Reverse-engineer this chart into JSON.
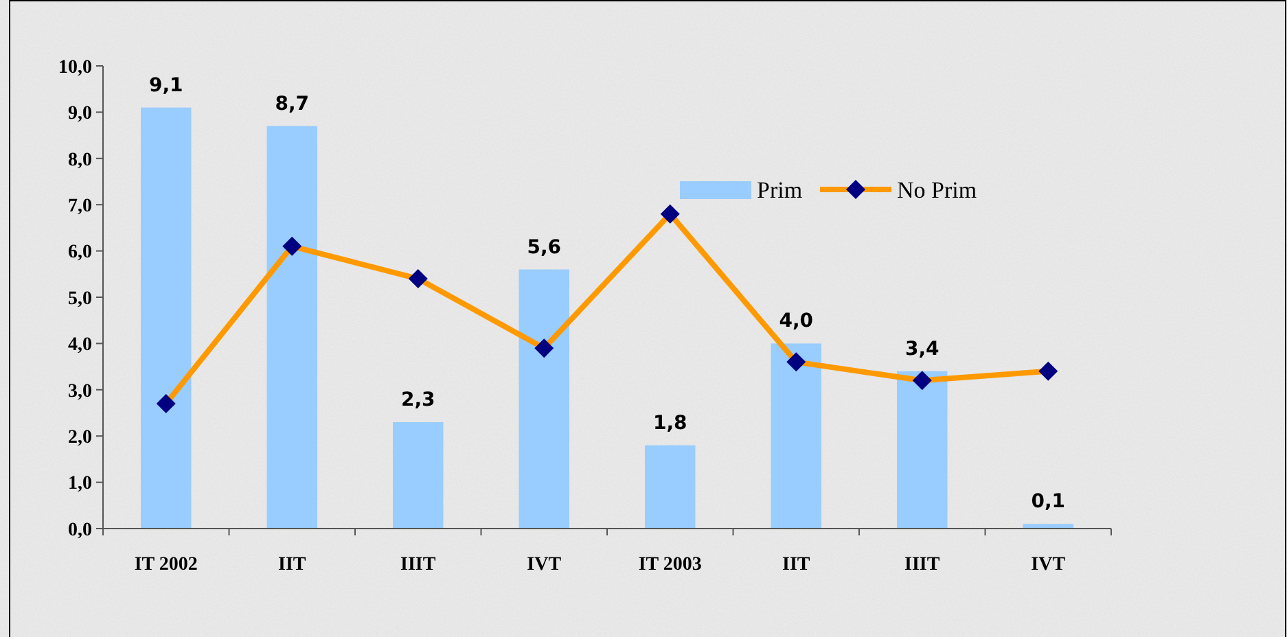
{
  "chart_data": {
    "type": "bar",
    "categories": [
      "IT 2002",
      "IIT",
      "IIIT",
      "IVT",
      "IT 2003",
      "IIT",
      "IIIT",
      "IVT"
    ],
    "series": [
      {
        "name": "Prim",
        "color": "#99ccff",
        "values": [
          9.1,
          8.7,
          2.3,
          5.6,
          1.8,
          4.0,
          3.4,
          0.1
        ],
        "value_labels": [
          "9,1",
          "8,7",
          "2,3",
          "5,6",
          "1,8",
          "4,0",
          "3,4",
          "0,1"
        ]
      },
      {
        "name": "No Prim",
        "type": "line",
        "color": "#ff9900",
        "marker": "diamond",
        "values": [
          2.7,
          6.1,
          5.4,
          3.9,
          6.8,
          3.6,
          3.2,
          3.4
        ]
      }
    ],
    "ylim": [
      0,
      10
    ],
    "yticks": [
      {
        "value": 0,
        "label": "0,0"
      },
      {
        "value": 1,
        "label": "1,0"
      },
      {
        "value": 2,
        "label": "2,0"
      },
      {
        "value": 3,
        "label": "3,0"
      },
      {
        "value": 4,
        "label": "4,0"
      },
      {
        "value": 5,
        "label": "5,0"
      },
      {
        "value": 6,
        "label": "6,0"
      },
      {
        "value": 7,
        "label": "7,0"
      },
      {
        "value": 8,
        "label": "8,0"
      },
      {
        "value": 9,
        "label": "9,0"
      },
      {
        "value": 10,
        "label": "10,0"
      }
    ],
    "grid": false,
    "legend": "top right"
  }
}
